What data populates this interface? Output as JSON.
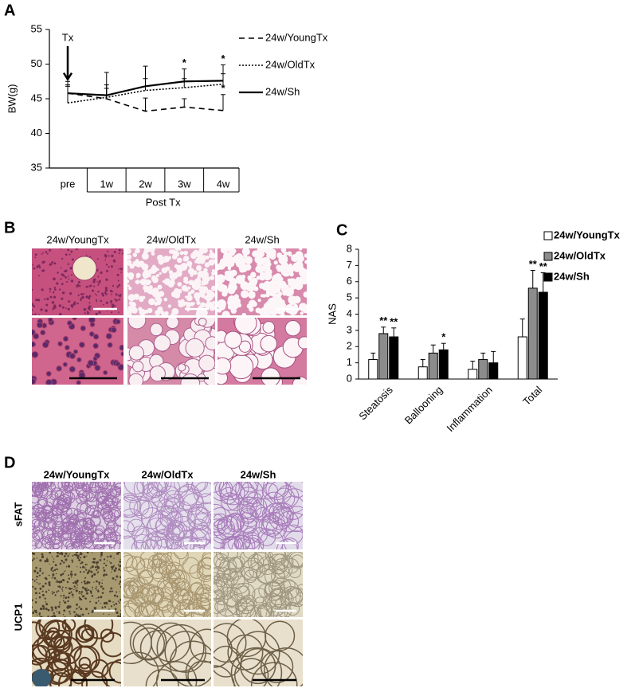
{
  "chart_data": [
    {
      "type": "line",
      "panel": "A",
      "categories": [
        "pre",
        "1w",
        "2w",
        "3w",
        "4w"
      ],
      "xlabel": "Post Tx",
      "ylabel": "BW(g)",
      "ylim": [
        35,
        55
      ],
      "yticks": [
        35,
        40,
        45,
        50,
        55
      ],
      "series": [
        {
          "name": "24w/YoungTx",
          "color": "#000000",
          "dash": "dashed",
          "values": [
            45.8,
            45.0,
            43.2,
            43.8,
            43.3
          ],
          "errors": [
            1.2,
            1.5,
            1.9,
            1.2,
            2.3
          ]
        },
        {
          "name": "24w/OldTx",
          "color": "#000000",
          "dash": "dotted",
          "values": [
            44.4,
            45.2,
            46.2,
            46.6,
            47.1
          ],
          "errors": [
            2.4,
            1.8,
            1.7,
            1.3,
            1.5
          ]
        },
        {
          "name": "24w/Sh",
          "color": "#000000",
          "dash": "solid",
          "values": [
            45.8,
            45.5,
            46.8,
            47.5,
            47.6
          ],
          "errors": [
            1.7,
            3.3,
            2.9,
            1.8,
            2.3
          ]
        }
      ],
      "annotations": [
        {
          "text": "Tx",
          "category": "pre",
          "arrow": true
        },
        {
          "text": "*",
          "category": "3w",
          "series": "24w/Sh"
        },
        {
          "text": "*",
          "category": "4w",
          "series": "24w/Sh"
        },
        {
          "text": "*",
          "category": "4w",
          "series": "24w/YoungTx"
        }
      ]
    },
    {
      "type": "bar",
      "panel": "C",
      "categories": [
        "Steatosis",
        "Ballooning",
        "Inflammation",
        "Total"
      ],
      "ylabel": "NAS",
      "ylim": [
        0,
        8
      ],
      "yticks": [
        0,
        1,
        2,
        3,
        4,
        5,
        6,
        7,
        8
      ],
      "series": [
        {
          "name": "24w/YoungTx",
          "color": "#ffffff",
          "values": [
            1.2,
            0.75,
            0.6,
            2.6
          ],
          "errors": [
            0.4,
            0.45,
            0.5,
            1.1
          ]
        },
        {
          "name": "24w/OldTx",
          "color": "#8c8c8c",
          "values": [
            2.8,
            1.6,
            1.2,
            5.6
          ],
          "errors": [
            0.4,
            0.5,
            0.4,
            1.1
          ]
        },
        {
          "name": "24w/Sh",
          "color": "#000000",
          "values": [
            2.6,
            1.8,
            1.0,
            5.35
          ],
          "errors": [
            0.55,
            0.4,
            0.7,
            1.2
          ]
        }
      ],
      "annotations": [
        {
          "text": "**",
          "category": "Steatosis",
          "series": "24w/OldTx"
        },
        {
          "text": "**",
          "category": "Steatosis",
          "series": "24w/Sh"
        },
        {
          "text": "*",
          "category": "Ballooning",
          "series": "24w/Sh"
        },
        {
          "text": "**",
          "category": "Total",
          "series": "24w/OldTx"
        },
        {
          "text": "**",
          "category": "Total",
          "series": "24w/Sh"
        }
      ]
    }
  ],
  "image_panels": [
    {
      "panel": "B",
      "columns": [
        "24w/YoungTx",
        "24w/OldTx",
        "24w/Sh"
      ]
    },
    {
      "panel": "D",
      "columns": [
        "24w/YoungTx",
        "24w/OldTx",
        "24w/Sh"
      ],
      "row_labels": [
        "sFAT",
        "UCP1"
      ]
    }
  ]
}
